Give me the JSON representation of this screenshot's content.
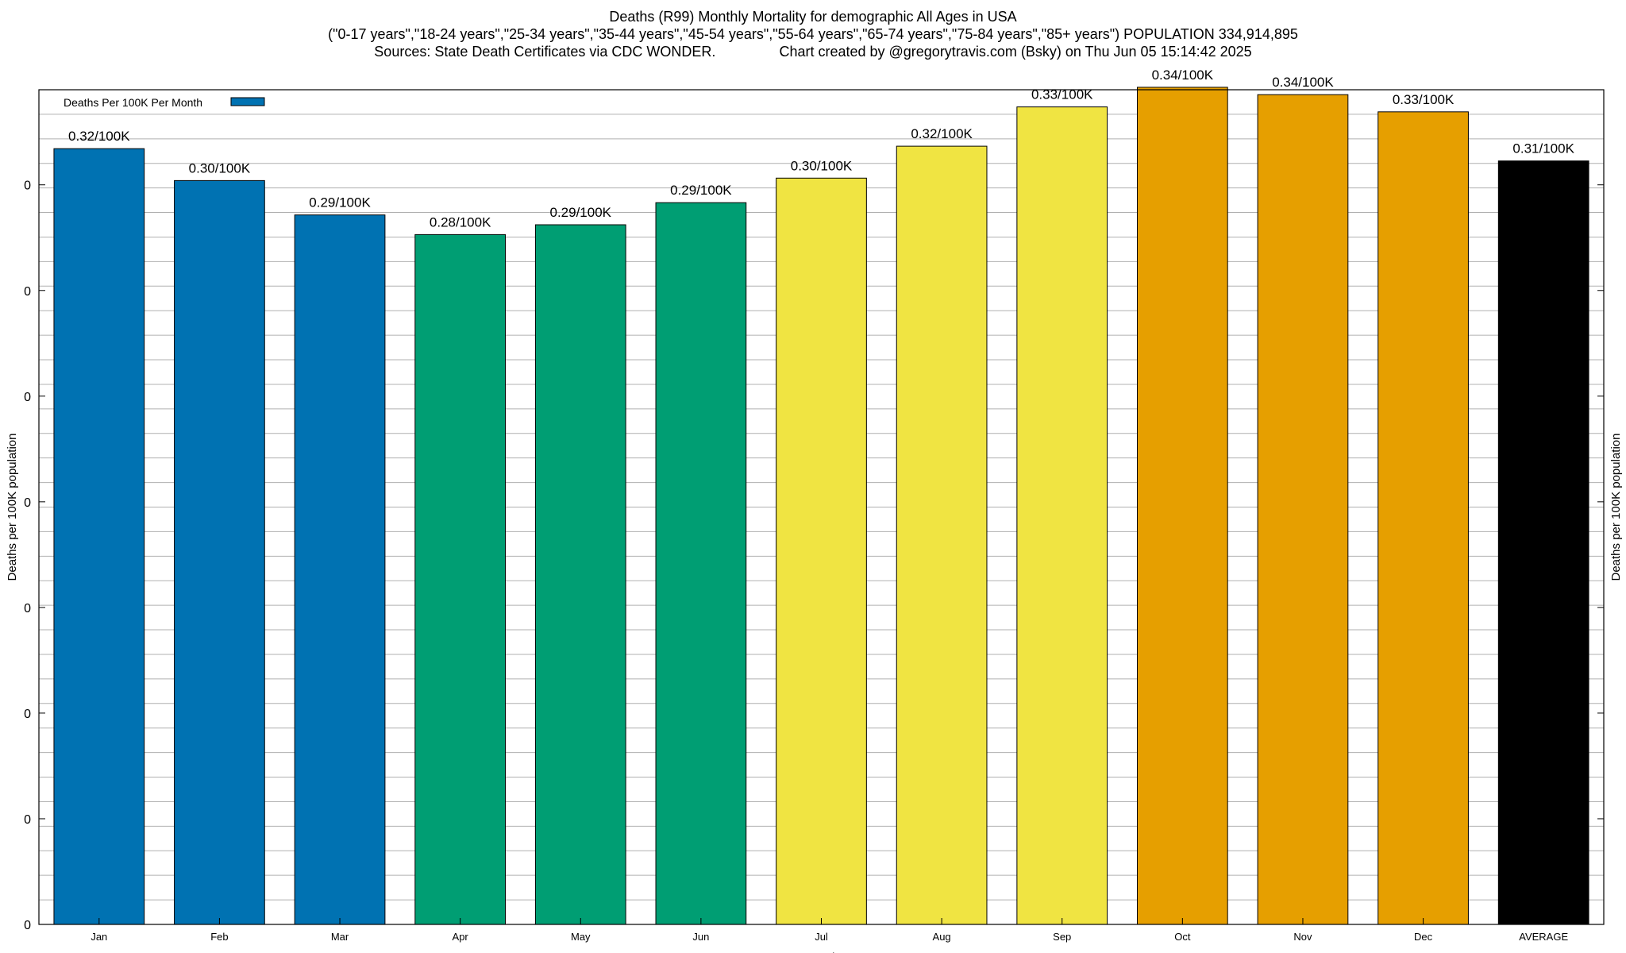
{
  "title_lines": [
    "Deaths (R99) Monthly Mortality for demographic All Ages in USA",
    "(\"0-17 years\",\"18-24 years\",\"25-34 years\",\"35-44 years\",\"45-54 years\",\"55-64 years\",\"65-74 years\",\"75-84 years\",\"85+ years\") POPULATION 334,914,895",
    "Sources: State Death Certificates via CDC WONDER.                Chart created by @gregorytravis.com (Bsky) on Thu Jun 05 15:14:42 2025"
  ],
  "chart_data": {
    "type": "bar",
    "xlabel": "Month",
    "ylabel": "Deaths per 100K population",
    "y2label": "Deaths per 100K population",
    "ytick_labels": [
      "0",
      "0",
      "0",
      "0",
      "0",
      "0",
      "0",
      "0"
    ],
    "ylim": [
      0,
      0.34
    ],
    "grid": true,
    "legend": {
      "position": "top-left",
      "entries": [
        {
          "label": "Deaths Per 100K Per Month",
          "color": "#0072b2"
        }
      ]
    },
    "categories": [
      "Jan",
      "Feb",
      "Mar",
      "Apr",
      "May",
      "Jun",
      "Jul",
      "Aug",
      "Sep",
      "Oct",
      "Nov",
      "Dec",
      "AVERAGE"
    ],
    "values": [
      0.316,
      0.303,
      0.289,
      0.281,
      0.285,
      0.294,
      0.304,
      0.317,
      0.333,
      0.341,
      0.338,
      0.331,
      0.311
    ],
    "labels": [
      "0.32/100K",
      "0.30/100K",
      "0.29/100K",
      "0.28/100K",
      "0.29/100K",
      "0.29/100K",
      "0.30/100K",
      "0.32/100K",
      "0.33/100K",
      "0.34/100K",
      "0.34/100K",
      "0.33/100K",
      "0.31/100K"
    ],
    "colors": [
      "#0072b2",
      "#0072b2",
      "#0072b2",
      "#009e73",
      "#009e73",
      "#009e73",
      "#f0e442",
      "#f0e442",
      "#f0e442",
      "#e69f00",
      "#e69f00",
      "#e69f00",
      "#000000"
    ]
  }
}
